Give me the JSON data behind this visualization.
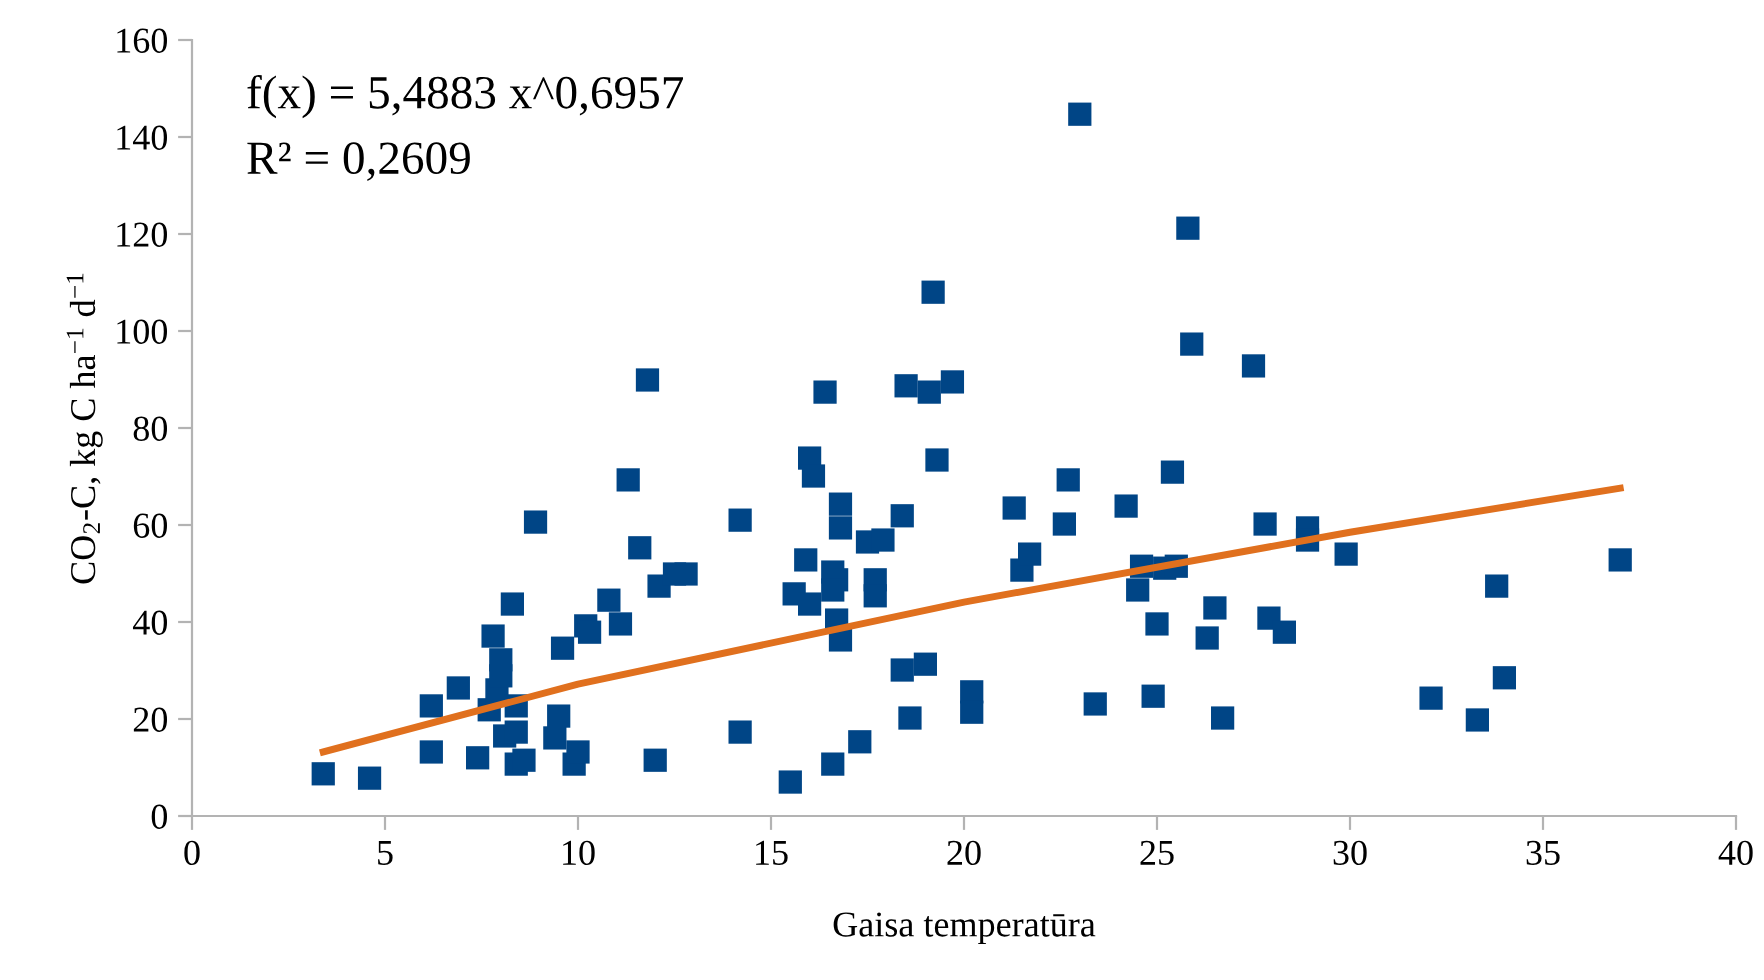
{
  "chart_data": {
    "type": "scatter",
    "xlabel": "Gaisa temperatūra",
    "ylabel": "CO$_{2}$-C, kg C ha$^{−1}$ d$^{−1}$",
    "xlim": [
      0,
      40
    ],
    "xticks": [
      0,
      5,
      10,
      15,
      20,
      25,
      30,
      35,
      40
    ],
    "ylim": [
      0,
      160
    ],
    "yticks": [
      0,
      20,
      40,
      60,
      80,
      100,
      120,
      140,
      160
    ],
    "grid": false,
    "legend": false,
    "marker": "square",
    "annotations": [
      "f(x) = 5,4883 x^0,6957",
      "R² = 0,2609"
    ],
    "series": [
      {
        "color": "#004586",
        "x": [
          3.4,
          4.6,
          6.2,
          6.2,
          6.9,
          7.4,
          7.8,
          7.7,
          7.9,
          8.0,
          8.0,
          8.1,
          8.3,
          8.4,
          8.4,
          8.4,
          8.6,
          8.9,
          9.4,
          9.5,
          9.6,
          9.9,
          10.0,
          10.2,
          10.3,
          10.8,
          11.1,
          11.3,
          11.6,
          11.8,
          12.0,
          12.1,
          12.5,
          12.8,
          14.2,
          14.2,
          19.2,
          16.4,
          18.5,
          19.1,
          19.7,
          16.0,
          16.1,
          19.3,
          16.8,
          16.8,
          18.4,
          17.5,
          17.9,
          21.3,
          15.9,
          16.6,
          16.7,
          17.7,
          15.6,
          16.0,
          16.6,
          17.7,
          21.5,
          21.7,
          16.7,
          16.8,
          18.4,
          19.0,
          18.6,
          20.2,
          20.2,
          17.3,
          16.6,
          15.5,
          23.0,
          25.8,
          25.9,
          27.5,
          22.7,
          22.6,
          25.4,
          24.2,
          27.8,
          28.9,
          28.9,
          29.9,
          24.6,
          25.2,
          25.5,
          24.5,
          25.0,
          26.5,
          26.3,
          27.9,
          28.3,
          23.4,
          24.9,
          26.7,
          37.0,
          33.8,
          34.0,
          32.1,
          33.3
        ],
        "values": [
          8.7,
          7.8,
          22.7,
          13.2,
          26.4,
          12.0,
          37.1,
          21.9,
          26.0,
          32.2,
          28.9,
          16.5,
          43.7,
          22.7,
          17.3,
          10.7,
          11.5,
          60.6,
          16.1,
          20.6,
          34.6,
          10.7,
          13.2,
          39.2,
          37.9,
          44.5,
          39.6,
          69.3,
          55.3,
          89.9,
          11.5,
          47.4,
          49.9,
          49.9,
          61.0,
          17.3,
          108.0,
          87.4,
          88.7,
          87.4,
          89.5,
          73.8,
          70.1,
          73.4,
          64.3,
          59.4,
          61.9,
          56.5,
          56.9,
          63.5,
          52.8,
          50.3,
          48.7,
          48.7,
          45.8,
          43.7,
          46.6,
          45.4,
          50.7,
          54.0,
          40.4,
          36.3,
          30.1,
          31.3,
          20.2,
          25.6,
          21.4,
          15.3,
          10.7,
          7.0,
          144.7,
          121.2,
          97.3,
          92.8,
          69.3,
          60.2,
          70.9,
          63.9,
          60.2,
          59.4,
          56.9,
          54.0,
          51.5,
          51.1,
          51.5,
          46.6,
          39.6,
          42.9,
          36.7,
          40.8,
          37.9,
          23.1,
          24.7,
          20.2,
          52.8,
          47.4,
          28.5,
          24.3,
          19.8
        ]
      },
      {
        "type": "line",
        "color": "#e0701e",
        "marker": "none",
        "x": [
          3.4,
          10,
          20,
          30,
          37.0
        ],
        "values": [
          13.2,
          27.2,
          44.1,
          58.5,
          67.6
        ]
      }
    ]
  }
}
